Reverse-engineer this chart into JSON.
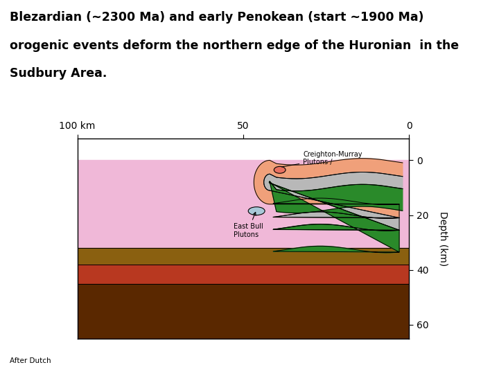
{
  "title_lines": [
    "Blezardian (~2300 Ma) and early Penokean (start ~1900 Ma)",
    "orogenic events deform the northern edge of the Huronian  in the",
    "Sudbury Area."
  ],
  "footer": "After Dutch",
  "colors": {
    "background": "#ffffff",
    "pink_crust": "#f0b8d8",
    "salmon": "#f0a07a",
    "gray_layer": "#b8b8b8",
    "green_layer": "#2a8a2a",
    "brown1": "#8a6010",
    "brown2": "#b83820",
    "brown3": "#5a2800",
    "cm_pluton": "#e87060",
    "eb_pluton": "#a8c8d8",
    "outline": "#000000"
  },
  "axis": {
    "x_ticks": [
      100,
      50,
      0
    ],
    "x_labels": [
      "100 km",
      "50",
      "0"
    ],
    "y_ticks": [
      0,
      20,
      40,
      60
    ],
    "y_labels": [
      "0",
      "20",
      "40",
      "60"
    ],
    "depth_label": "Depth (km)"
  },
  "fold": {
    "fold_x": 42,
    "fold_c_x": 42,
    "fold_c_y": 8,
    "fold_outer_r": 8,
    "fold_inner_r": 3,
    "x_surf_start": 2,
    "x_surf_end": 40,
    "x_deep_start": 41,
    "x_deep_end": 3
  }
}
